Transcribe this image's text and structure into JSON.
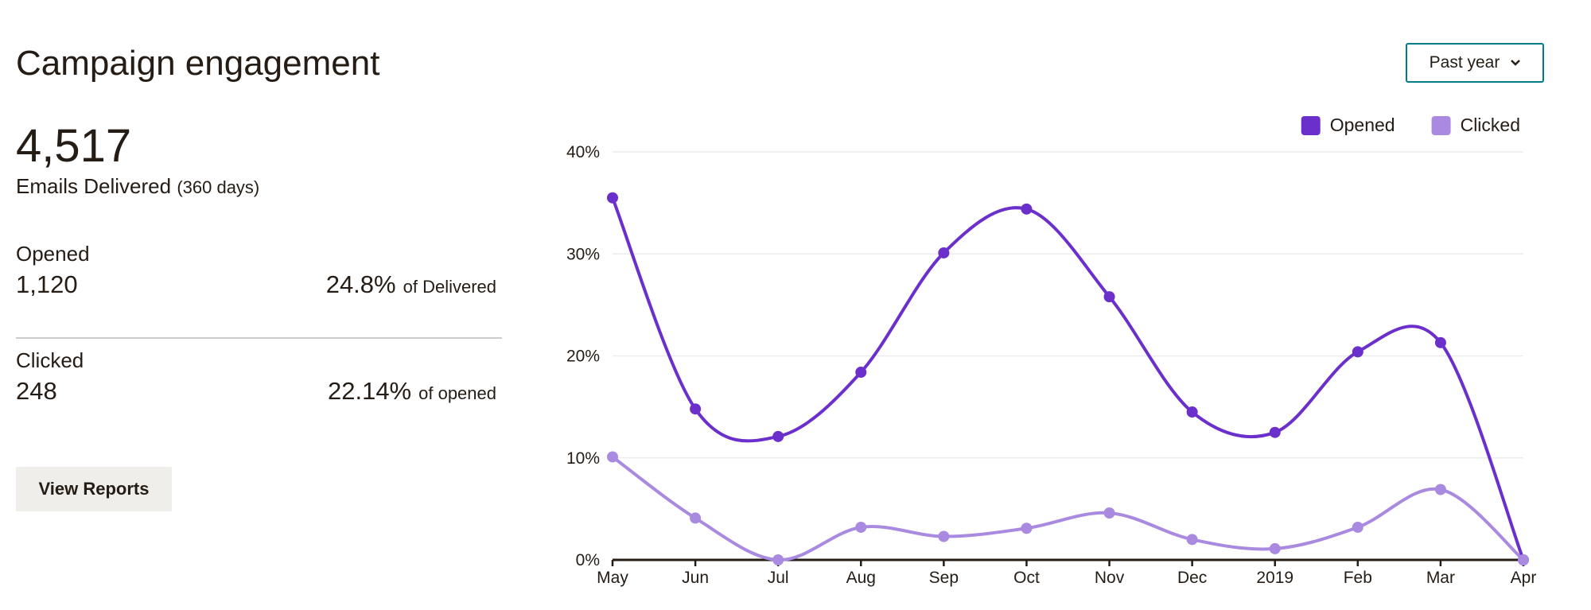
{
  "header": {
    "title": "Campaign engagement",
    "range_button": "Past year"
  },
  "summary": {
    "total": "4,517",
    "total_label": "Emails Delivered",
    "total_note": "(360 days)",
    "rows": [
      {
        "label": "Opened",
        "count": "1,120",
        "rate": "24.8%",
        "rate_note": "of Delivered"
      },
      {
        "label": "Clicked",
        "count": "248",
        "rate": "22.14%",
        "rate_note": "of opened"
      }
    ],
    "button": "View Reports"
  },
  "chart_data": {
    "type": "line",
    "smooth": true,
    "categories": [
      "May",
      "Jun",
      "Jul",
      "Aug",
      "Sep",
      "Oct",
      "Nov",
      "Dec",
      "2019",
      "Feb",
      "Mar",
      "Apr"
    ],
    "series": [
      {
        "name": "Opened",
        "color": "#6b2fcc",
        "values": [
          35.5,
          14.8,
          12.1,
          18.4,
          30.1,
          34.4,
          25.8,
          14.5,
          12.5,
          20.4,
          21.3,
          0
        ]
      },
      {
        "name": "Clicked",
        "color": "#a98ae0",
        "values": [
          10.1,
          4.1,
          0,
          3.2,
          2.3,
          3.1,
          4.6,
          2.0,
          1.1,
          3.2,
          6.9,
          0
        ]
      }
    ],
    "ylim": [
      0,
      40
    ],
    "yticks": [
      {
        "value": 0,
        "label": "0%"
      },
      {
        "value": 10,
        "label": "10%"
      },
      {
        "value": 20,
        "label": "20%"
      },
      {
        "value": 30,
        "label": "30%"
      },
      {
        "value": 40,
        "label": "40%"
      }
    ],
    "grid": true,
    "legend": "top-right"
  }
}
